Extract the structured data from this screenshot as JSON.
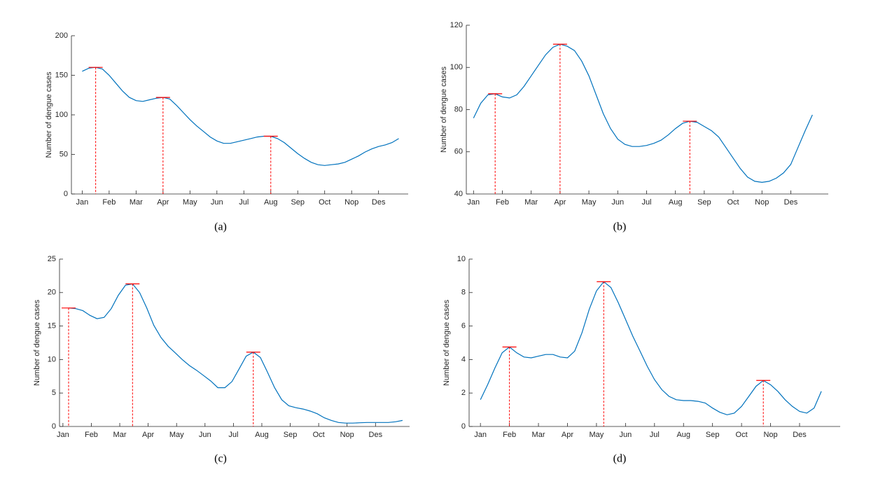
{
  "chart_data": [
    {
      "type": "line",
      "caption": "(a)",
      "ylabel": "Number of dengue cases",
      "color": "#0072bd",
      "peak_color": "#ff0000",
      "x": [
        1,
        1.25,
        1.5,
        1.75,
        2,
        2.25,
        2.5,
        2.75,
        3,
        3.25,
        3.5,
        3.75,
        4,
        4.25,
        4.5,
        4.75,
        5,
        5.25,
        5.5,
        5.75,
        6,
        6.25,
        6.5,
        6.75,
        7,
        7.25,
        7.5,
        7.75,
        8,
        8.25,
        8.5,
        8.75,
        9,
        9.25,
        9.5,
        9.75,
        10,
        10.25,
        10.5,
        10.75,
        11,
        11.25,
        11.5,
        11.75,
        12,
        12.25,
        12.5,
        12.75
      ],
      "values": [
        155,
        159,
        160,
        158,
        150,
        140,
        130,
        122,
        118,
        117,
        119,
        121,
        122,
        120,
        112,
        103,
        94,
        86,
        79,
        72,
        67,
        64,
        64,
        66,
        68,
        70,
        72,
        73,
        73,
        70,
        65,
        58,
        51,
        45,
        40,
        37,
        36,
        37,
        38,
        40,
        44,
        48,
        53,
        57,
        60,
        62,
        65,
        70
      ],
      "peaks": [
        {
          "x": 1.5,
          "y": 160
        },
        {
          "x": 4,
          "y": 122
        },
        {
          "x": 8,
          "y": 73
        }
      ],
      "xlim": [
        0.6,
        13.1
      ],
      "xticks": [
        {
          "value": 1,
          "label": "Jan"
        },
        {
          "value": 2,
          "label": "Feb"
        },
        {
          "value": 3,
          "label": "Mar"
        },
        {
          "value": 4,
          "label": "Apr"
        },
        {
          "value": 5,
          "label": "May"
        },
        {
          "value": 6,
          "label": "Jun"
        },
        {
          "value": 7,
          "label": "Jul"
        },
        {
          "value": 8,
          "label": "Aug"
        },
        {
          "value": 9,
          "label": "Sep"
        },
        {
          "value": 10,
          "label": "Oct"
        },
        {
          "value": 11,
          "label": "Nop"
        },
        {
          "value": 12,
          "label": "Des"
        }
      ],
      "ylim": [
        0,
        200
      ],
      "yticks": [
        0,
        50,
        100,
        150,
        200
      ]
    },
    {
      "type": "line",
      "caption": "(b)",
      "ylabel": "Number of dengue cases",
      "color": "#0072bd",
      "peak_color": "#ff0000",
      "x": [
        1,
        1.25,
        1.5,
        1.75,
        2,
        2.25,
        2.5,
        2.75,
        3,
        3.25,
        3.5,
        3.75,
        4,
        4.25,
        4.5,
        4.75,
        5,
        5.25,
        5.5,
        5.75,
        6,
        6.25,
        6.5,
        6.75,
        7,
        7.25,
        7.5,
        7.75,
        8,
        8.25,
        8.5,
        8.75,
        9,
        9.25,
        9.5,
        9.75,
        10,
        10.25,
        10.5,
        10.75,
        11,
        11.25,
        11.5,
        11.75,
        12,
        12.25,
        12.5,
        12.75
      ],
      "values": [
        76,
        83,
        87,
        87.5,
        86,
        85.5,
        87,
        91,
        96,
        101,
        106,
        109.5,
        111,
        110,
        108,
        103,
        96,
        87,
        78,
        71,
        66,
        63.5,
        62.5,
        62.5,
        63,
        64,
        65.5,
        68,
        71,
        73.5,
        74.5,
        74,
        72,
        70,
        67,
        62,
        57,
        52,
        48,
        46,
        45.5,
        46,
        47.5,
        50,
        54,
        62,
        70,
        77.5
      ],
      "peaks": [
        {
          "x": 1.75,
          "y": 87.5
        },
        {
          "x": 4,
          "y": 111
        },
        {
          "x": 8.5,
          "y": 74.5
        }
      ],
      "xlim": [
        0.75,
        13.3
      ],
      "xticks": [
        {
          "value": 1,
          "label": "Jan"
        },
        {
          "value": 2,
          "label": "Feb"
        },
        {
          "value": 3,
          "label": "Mar"
        },
        {
          "value": 4,
          "label": "Apr"
        },
        {
          "value": 5,
          "label": "May"
        },
        {
          "value": 6,
          "label": "Jun"
        },
        {
          "value": 7,
          "label": "Jul"
        },
        {
          "value": 8,
          "label": "Aug"
        },
        {
          "value": 9,
          "label": "Sep"
        },
        {
          "value": 10,
          "label": "Oct"
        },
        {
          "value": 11,
          "label": "Nop"
        },
        {
          "value": 12,
          "label": "Des"
        }
      ],
      "ylim": [
        40,
        120
      ],
      "yticks": [
        40,
        60,
        80,
        100,
        120
      ]
    },
    {
      "type": "line",
      "caption": "(c)",
      "ylabel": "Number of dengue cases",
      "color": "#0072bd",
      "peak_color": "#ff0000",
      "x": [
        1.2,
        1.45,
        1.7,
        1.95,
        2.2,
        2.45,
        2.7,
        2.95,
        3.2,
        3.45,
        3.7,
        3.95,
        4.2,
        4.45,
        4.7,
        4.95,
        5.2,
        5.45,
        5.7,
        5.95,
        6.2,
        6.45,
        6.7,
        6.95,
        7.2,
        7.45,
        7.7,
        7.95,
        8.2,
        8.45,
        8.7,
        8.95,
        9.2,
        9.45,
        9.7,
        9.95,
        10.2,
        10.45,
        10.7,
        10.95,
        11.2,
        11.45,
        11.7,
        11.95,
        12.2,
        12.45,
        12.7,
        12.95
      ],
      "values": [
        17.7,
        17.6,
        17.3,
        16.6,
        16.1,
        16.3,
        17.6,
        19.6,
        21.1,
        21.3,
        20,
        17.7,
        15.1,
        13.3,
        12,
        11,
        10,
        9.1,
        8.4,
        7.6,
        6.8,
        5.8,
        5.8,
        6.7,
        8.6,
        10.5,
        11.1,
        10.3,
        8.1,
        5.8,
        4,
        3.1,
        2.8,
        2.6,
        2.3,
        1.9,
        1.3,
        0.9,
        0.6,
        0.5,
        0.5,
        0.55,
        0.6,
        0.6,
        0.6,
        0.6,
        0.7,
        0.9
      ],
      "peaks": [
        {
          "x": 1.2,
          "y": 17.7
        },
        {
          "x": 3.45,
          "y": 21.3
        },
        {
          "x": 7.7,
          "y": 11.1
        }
      ],
      "xlim": [
        0.88,
        13.2
      ],
      "xticks": [
        {
          "value": 1,
          "label": "Jan"
        },
        {
          "value": 2,
          "label": "Feb"
        },
        {
          "value": 3,
          "label": "Mar"
        },
        {
          "value": 4,
          "label": "Apr"
        },
        {
          "value": 5,
          "label": "May"
        },
        {
          "value": 6,
          "label": "Jun"
        },
        {
          "value": 7,
          "label": "Jul"
        },
        {
          "value": 8,
          "label": "Aug"
        },
        {
          "value": 9,
          "label": "Sep"
        },
        {
          "value": 10,
          "label": "Oct"
        },
        {
          "value": 11,
          "label": "Nop"
        },
        {
          "value": 12,
          "label": "Des"
        }
      ],
      "ylim": [
        0,
        25
      ],
      "yticks": [
        0,
        5,
        10,
        15,
        20,
        25
      ]
    },
    {
      "type": "line",
      "caption": "(d)",
      "ylabel": "Number of dengue cases",
      "color": "#0072bd",
      "peak_color": "#ff0000",
      "x": [
        1,
        1.25,
        1.5,
        1.75,
        2,
        2.25,
        2.5,
        2.75,
        3,
        3.25,
        3.5,
        3.75,
        4,
        4.25,
        4.5,
        4.75,
        5,
        5.25,
        5.5,
        5.75,
        6,
        6.25,
        6.5,
        6.75,
        7,
        7.25,
        7.5,
        7.75,
        8,
        8.25,
        8.5,
        8.75,
        9,
        9.25,
        9.5,
        9.75,
        10,
        10.25,
        10.5,
        10.75,
        11,
        11.25,
        11.5,
        11.75,
        12,
        12.25,
        12.5,
        12.75
      ],
      "values": [
        1.6,
        2.5,
        3.5,
        4.4,
        4.75,
        4.4,
        4.15,
        4.1,
        4.2,
        4.3,
        4.3,
        4.15,
        4.1,
        4.5,
        5.6,
        7,
        8.1,
        8.65,
        8.3,
        7.4,
        6.4,
        5.4,
        4.5,
        3.6,
        2.8,
        2.2,
        1.8,
        1.6,
        1.55,
        1.55,
        1.5,
        1.4,
        1.1,
        0.85,
        0.7,
        0.8,
        1.2,
        1.8,
        2.4,
        2.75,
        2.5,
        2.1,
        1.6,
        1.2,
        0.9,
        0.8,
        1.1,
        2.1
      ],
      "peaks": [
        {
          "x": 2,
          "y": 4.75
        },
        {
          "x": 5.25,
          "y": 8.65
        },
        {
          "x": 10.75,
          "y": 2.75
        }
      ],
      "xlim": [
        0.61,
        13.4
      ],
      "xticks": [
        {
          "value": 1,
          "label": "Jan"
        },
        {
          "value": 2,
          "label": "Feb"
        },
        {
          "value": 3,
          "label": "Mar"
        },
        {
          "value": 4,
          "label": "Apr"
        },
        {
          "value": 5,
          "label": "May"
        },
        {
          "value": 6,
          "label": "Jun"
        },
        {
          "value": 7,
          "label": "Jul"
        },
        {
          "value": 8,
          "label": "Aug"
        },
        {
          "value": 9,
          "label": "Sep"
        },
        {
          "value": 10,
          "label": "Oct"
        },
        {
          "value": 11,
          "label": "Nop"
        },
        {
          "value": 12,
          "label": "Des"
        }
      ],
      "ylim": [
        0,
        10
      ],
      "yticks": [
        0,
        2,
        4,
        6,
        8,
        10
      ]
    }
  ]
}
